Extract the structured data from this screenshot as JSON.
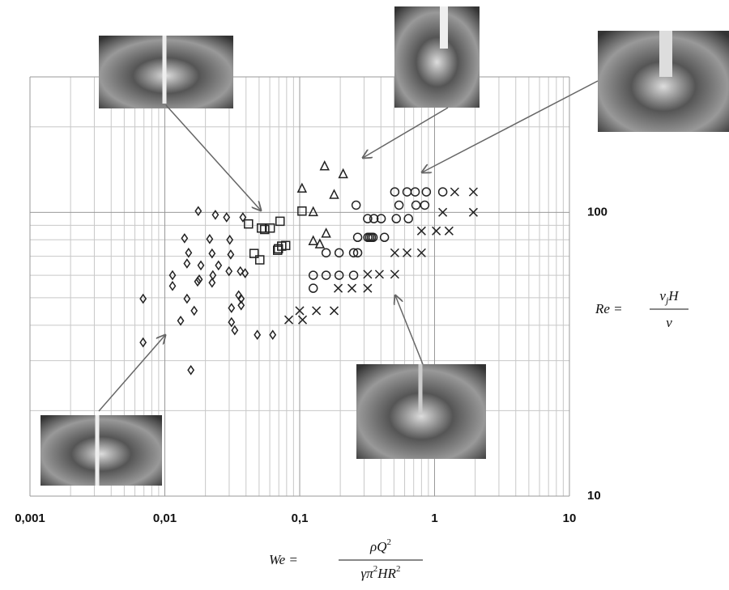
{
  "chart_data": {
    "type": "scatter",
    "log_x": true,
    "log_y": true,
    "grid": true,
    "xlim": [
      0.001,
      10
    ],
    "ylim": [
      10,
      300
    ],
    "xticks": [
      {
        "value": 0.001,
        "label": "0,001"
      },
      {
        "value": 0.01,
        "label": "0,01"
      },
      {
        "value": 0.1,
        "label": "0,1"
      },
      1,
      10
    ],
    "yticks": [
      10,
      100
    ],
    "xminorticks": [
      0.002,
      0.003,
      0.004,
      0.005,
      0.006,
      0.007,
      0.008,
      0.009,
      0.02,
      0.03,
      0.04,
      0.05,
      0.06,
      0.07,
      0.08,
      0.09,
      0.2,
      0.3,
      0.4,
      0.5,
      0.6,
      0.7,
      0.8,
      0.9,
      2,
      3,
      4,
      5,
      6,
      7,
      8,
      9
    ],
    "yminorticks": [
      20,
      30,
      40,
      50,
      60,
      70,
      80,
      90,
      200
    ],
    "xlabel": {
      "lhs": "We =",
      "numerator": [
        "ρQ",
        "2"
      ],
      "denominator": [
        "γπ",
        "2",
        "HR",
        "2"
      ]
    },
    "ylabel": {
      "lhs": "Re =",
      "numerator": [
        "v",
        "j",
        "H"
      ],
      "denominator": "ν"
    },
    "series": [
      {
        "marker": "diamond",
        "color": "#222",
        "x": [
          0.0177,
          0.0237,
          0.0287,
          0.0379,
          0.0215,
          0.0303,
          0.014,
          0.015,
          0.0224,
          0.0308,
          0.0185,
          0.025,
          0.0114,
          0.0146,
          0.018,
          0.0227,
          0.0299,
          0.0363,
          0.0394,
          0.0114,
          0.0175,
          0.0224,
          0.0146,
          0.0069,
          0.0353,
          0.0368,
          0.0312,
          0.0368,
          0.0131,
          0.0165,
          0.0312,
          0.0485,
          0.033,
          0.0631,
          0.0069,
          0.0156
        ],
        "y": [
          101,
          98,
          96,
          96,
          80.5,
          80,
          81,
          72,
          71.6,
          71,
          65,
          65,
          60,
          66,
          58,
          60,
          62,
          62,
          61,
          55,
          57,
          56.5,
          49.6,
          49.6,
          51,
          49.6,
          46,
          47,
          41.5,
          45,
          41,
          37,
          38.4,
          37,
          34.8,
          27.8
        ]
      },
      {
        "marker": "square",
        "color": "#222",
        "x": [
          0.0417,
          0.052,
          0.055,
          0.0605,
          0.0715,
          0.104,
          0.0735,
          0.0686,
          0.0459,
          0.0506,
          0.0695,
          0.0787
        ],
        "y": [
          91,
          88,
          87,
          88,
          93,
          101,
          76,
          73.5,
          71.6,
          68,
          74.4,
          76.4
        ]
      },
      {
        "marker": "triangle",
        "color": "#222",
        "x": [
          0.104,
          0.153,
          0.21,
          0.18,
          0.126,
          0.141,
          0.157,
          0.126
        ],
        "y": [
          121,
          145,
          136,
          115,
          79,
          77,
          84,
          100
        ]
      },
      {
        "marker": "circle",
        "color": "#222",
        "x": [
          0.507,
          0.625,
          0.718,
          0.869,
          1.15,
          0.545,
          0.728,
          0.846,
          0.262,
          0.319,
          0.355,
          0.402,
          0.52,
          0.64,
          0.269,
          0.32,
          0.33,
          0.34,
          0.35,
          0.425,
          0.157,
          0.196,
          0.251,
          0.269,
          0.126,
          0.157,
          0.196,
          0.251,
          0.126
        ],
        "y": [
          118,
          118,
          118,
          118,
          118,
          106,
          106,
          106,
          106,
          95,
          95,
          95,
          95,
          95,
          81.6,
          81.6,
          81.6,
          81.6,
          81.6,
          81.6,
          72,
          72,
          72,
          72,
          60,
          60,
          60,
          60,
          54
        ]
      },
      {
        "marker": "cross",
        "color": "#222",
        "x": [
          1.41,
          1.94,
          1.15,
          1.94,
          0.8,
          1.03,
          1.28,
          0.507,
          0.625,
          0.8,
          0.319,
          0.39,
          0.507,
          0.193,
          0.244,
          0.319,
          0.1,
          0.133,
          0.18,
          0.083,
          0.105
        ],
        "y": [
          118,
          118,
          100,
          100,
          86,
          86,
          86,
          72,
          72,
          72,
          60.5,
          60.5,
          60.5,
          54,
          54,
          54,
          45,
          45,
          45,
          41.8,
          41.8
        ]
      }
    ]
  }
}
